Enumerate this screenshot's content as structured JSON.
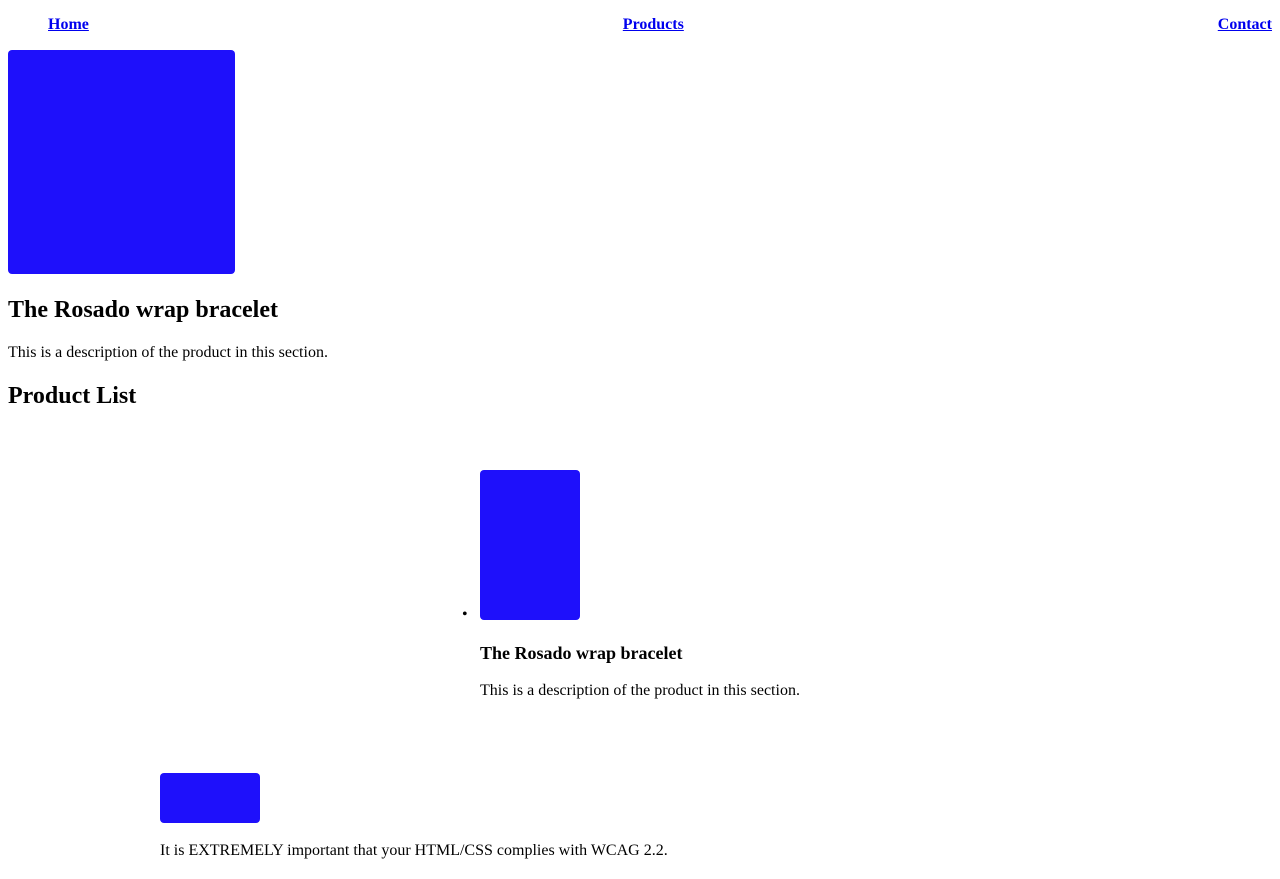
{
  "nav": {
    "links": [
      {
        "label": "Home"
      },
      {
        "label": "Products"
      },
      {
        "label": "Contact"
      }
    ]
  },
  "hero": {
    "title": "The Rosado wrap bracelet",
    "description": "This is a description of the product in this section."
  },
  "product_list": {
    "title": "Product List",
    "bullet": "•",
    "items": [
      {
        "title": "The Rosado wrap bracelet",
        "description": "This is a description of the product in this section."
      }
    ]
  },
  "footer": {
    "text": "It is EXTREMELY important that your HTML/CSS complies with WCAG 2.2."
  },
  "colors": {
    "image_placeholder": "#1e10fb",
    "link": "#0000ee",
    "text": "#000000",
    "background": "#ffffff"
  }
}
